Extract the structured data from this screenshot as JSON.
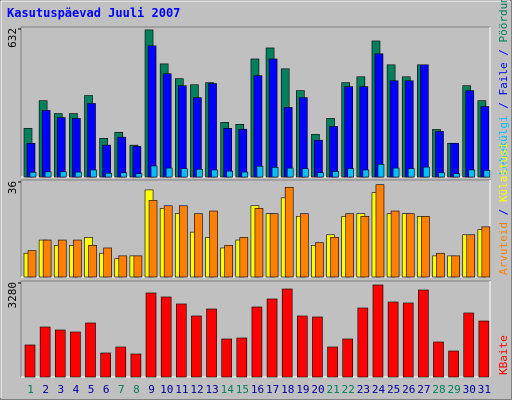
{
  "chart_data": {
    "type": "bar",
    "title": "Kasutuspäevad Juuli 2007",
    "categories": [
      "1",
      "2",
      "3",
      "4",
      "5",
      "6",
      "7",
      "8",
      "9",
      "10",
      "11",
      "12",
      "13",
      "14",
      "15",
      "16",
      "17",
      "18",
      "19",
      "20",
      "21",
      "22",
      "23",
      "24",
      "25",
      "26",
      "27",
      "28",
      "29",
      "30",
      "31"
    ],
    "category_colors": [
      "#00805c",
      "#0000a0",
      "#0000a0",
      "#0000a0",
      "#0000a0",
      "#0000a0",
      "#00805c",
      "#00805c",
      "#0000a0",
      "#0000a0",
      "#0000a0",
      "#0000a0",
      "#0000a0",
      "#00805c",
      "#00805c",
      "#0000a0",
      "#0000a0",
      "#0000a0",
      "#0000a0",
      "#0000a0",
      "#00805c",
      "#00805c",
      "#0000a0",
      "#0000a0",
      "#0000a0",
      "#0000a0",
      "#0000a0",
      "#00805c",
      "#00805c",
      "#0000a0",
      "#0000a0"
    ],
    "legend_separator": " / ",
    "panels": [
      {
        "ylim": [
          0,
          632
        ],
        "yticks": [
          632
        ],
        "series": [
          {
            "name": "Pöördumisi",
            "color": "#00805c",
            "values": [
              208,
              326,
              271,
              271,
              348,
              165,
              191,
              136,
              628,
              483,
              420,
              394,
              403,
              233,
              225,
              504,
              551,
              462,
              369,
              182,
              250,
              403,
              428,
              581,
              479,
              428,
              479,
              203,
              144,
              390,
              326
            ]
          },
          {
            "name": "Faile",
            "color": "#0000ff",
            "values": [
              144,
              284,
              254,
              250,
              314,
              136,
              170,
              131,
              560,
              441,
              390,
              339,
              399,
              208,
              204,
              433,
              504,
              297,
              339,
              157,
              216,
              386,
              386,
              526,
              411,
              411,
              479,
              195,
              144,
              369,
              301
            ]
          },
          {
            "name": "Lehekülgi",
            "color": "#00c0ff",
            "values": [
              20,
              22,
              22,
              21,
              30,
              16,
              18,
              14,
              47,
              38,
              36,
              33,
              30,
              25,
              21,
              46,
              41,
              38,
              36,
              18,
              24,
              36,
              30,
              54,
              38,
              36,
              42,
              18,
              14,
              30,
              28
            ]
          }
        ]
      },
      {
        "ylim": [
          0,
          36
        ],
        "yticks": [
          36
        ],
        "series": [
          {
            "name": "Külastusi",
            "color": "#ffff00",
            "values": [
              9,
              14,
              12,
              12,
              15,
              9,
              7,
              8,
              33,
              26,
              24,
              17,
              15,
              11,
              14,
              27,
              24,
              30,
              23,
              12,
              16,
              23,
              24,
              32,
              24,
              24,
              23,
              8,
              8,
              16,
              18
            ]
          },
          {
            "name": "Arvuteid",
            "color": "#ff8000",
            "values": [
              10,
              14,
              14,
              14,
              12,
              11,
              8,
              8,
              29,
              27,
              27,
              24,
              25,
              12,
              15,
              26,
              24,
              34,
              24,
              13,
              15,
              24,
              23,
              35,
              25,
              24,
              23,
              9,
              8,
              16,
              19
            ]
          }
        ]
      },
      {
        "ylim": [
          0,
          3280
        ],
        "yticks": [
          3280
        ],
        "series": [
          {
            "name": "KBaite",
            "color": "#ff0000",
            "values": [
              1117,
              1745,
              1640,
              1570,
              1885,
              838,
              1047,
              803,
              2932,
              2792,
              2548,
              2129,
              2373,
              1326,
              1361,
              2443,
              2722,
              3071,
              2129,
              2094,
              1047,
              1326,
              2408,
              3211,
              2618,
              2583,
              3036,
              1222,
              907,
              2234,
              1954
            ]
          }
        ]
      }
    ]
  }
}
